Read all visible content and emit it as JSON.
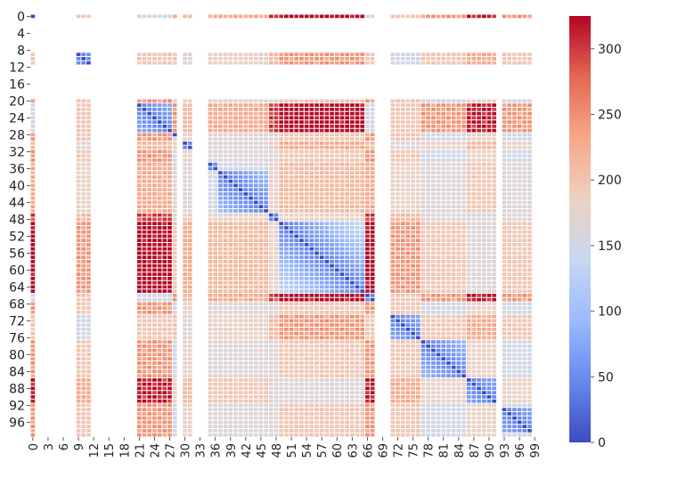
{
  "chart_data": {
    "type": "heatmap",
    "title": "",
    "xlabel": "",
    "ylabel": "",
    "n": 100,
    "x_tick_labels": [
      "0",
      "3",
      "6",
      "9",
      "12",
      "15",
      "18",
      "21",
      "24",
      "27",
      "30",
      "33",
      "36",
      "39",
      "42",
      "45",
      "48",
      "51",
      "54",
      "57",
      "60",
      "63",
      "66",
      "69",
      "72",
      "75",
      "78",
      "81",
      "84",
      "87",
      "90",
      "93",
      "96",
      "99"
    ],
    "y_tick_labels": [
      "0",
      "4",
      "8",
      "12",
      "16",
      "20",
      "24",
      "28",
      "32",
      "36",
      "40",
      "44",
      "48",
      "52",
      "56",
      "60",
      "64",
      "68",
      "72",
      "76",
      "80",
      "84",
      "88",
      "92",
      "96"
    ],
    "colorbar": {
      "min": 0,
      "max": 325,
      "ticks": [
        "0",
        "50",
        "100",
        "150",
        "200",
        "250",
        "300"
      ],
      "colormap": "coolwarm",
      "colors": [
        "#3b4cc0",
        "#6788ee",
        "#9abbff",
        "#c9d7f0",
        "#edd1c2",
        "#f7a889",
        "#e26952",
        "#b40426"
      ]
    },
    "background_color": "#ffffff",
    "empty_rows": [
      1,
      2,
      3,
      4,
      5,
      6,
      7,
      8,
      12,
      13,
      14,
      15,
      16,
      17,
      18,
      19
    ],
    "empty_cols": [
      1,
      2,
      3,
      4,
      5,
      6,
      7,
      8,
      12,
      13,
      14,
      15,
      16,
      17,
      18,
      19,
      20,
      29,
      32,
      33,
      34,
      68,
      69,
      70,
      92,
      99
    ],
    "clusters": [
      {
        "start": 0,
        "end": 0,
        "level": 0.0
      },
      {
        "start": 9,
        "end": 11,
        "level": 0.15
      },
      {
        "start": 21,
        "end": 27,
        "level": 0.0
      },
      {
        "start": 30,
        "end": 31,
        "level": 0.2
      },
      {
        "start": 35,
        "end": 36,
        "level": 0.25
      },
      {
        "start": 37,
        "end": 46,
        "level": 0.25
      },
      {
        "start": 47,
        "end": 48,
        "level": 0.35
      },
      {
        "start": 49,
        "end": 65,
        "level": 0.45
      },
      {
        "start": 66,
        "end": 67,
        "level": 0.0
      },
      {
        "start": 71,
        "end": 76,
        "level": 0.15
      },
      {
        "start": 77,
        "end": 85,
        "level": 0.3
      },
      {
        "start": 86,
        "end": 91,
        "level": 0.4
      },
      {
        "start": 93,
        "end": 98,
        "level": 0.3
      }
    ],
    "value_model": "distance matrix: value grows with |level(row) - level(col)|; zero on the diagonal"
  }
}
